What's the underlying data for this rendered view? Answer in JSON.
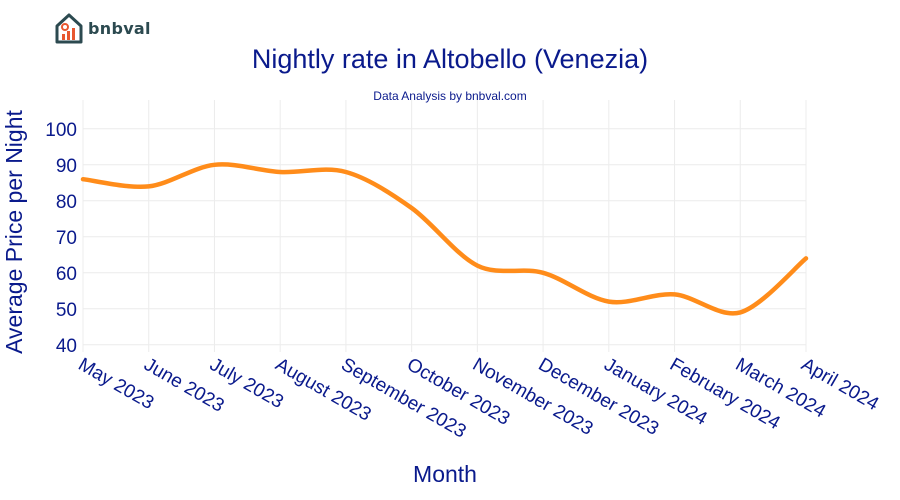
{
  "brand": {
    "name": "bnbval",
    "icon": "house-chart-icon",
    "color": "#2c4a50",
    "accent": "#e8572f"
  },
  "chart_data": {
    "type": "line",
    "title": "Nightly rate in Altobello (Venezia)",
    "subtitle": "Data Analysis by bnbval.com",
    "xlabel": "Month",
    "ylabel": "Average Price per Night",
    "categories": [
      "May 2023",
      "June 2023",
      "July 2023",
      "August 2023",
      "September 2023",
      "October 2023",
      "November 2023",
      "December 2023",
      "January 2024",
      "February 2024",
      "March 2024",
      "April 2024"
    ],
    "series": [
      {
        "values": [
          86,
          84,
          90,
          88,
          88,
          78,
          62,
          60,
          52,
          54,
          49,
          64
        ]
      }
    ],
    "yticks": [
      40,
      50,
      60,
      70,
      80,
      90,
      100
    ],
    "ylim": [
      38,
      108
    ],
    "grid": true,
    "line_color": "#ff8c1a"
  }
}
